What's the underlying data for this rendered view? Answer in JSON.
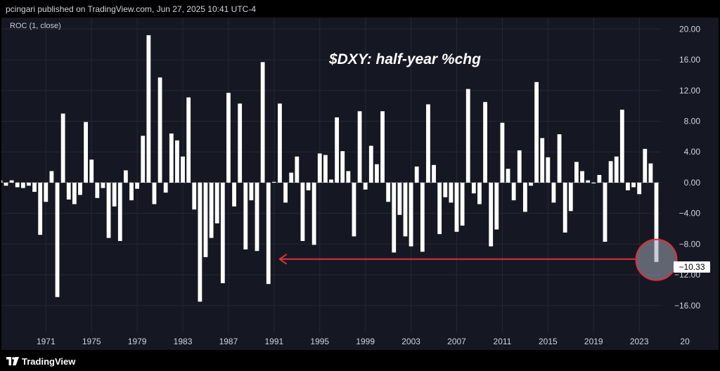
{
  "header": {
    "publisher": "pcingari published on TradingView.com, Jun 27, 2025 10:41 UTC-4"
  },
  "indicator_label": "ROC (1, close)",
  "footer": {
    "brand": "TradingView",
    "logo_icon": "tradingview-logo-icon"
  },
  "colors": {
    "background": "#151823",
    "bars": "#ffffff",
    "grid": "#242836",
    "annotation": "#e0303a"
  },
  "chart_data": {
    "type": "bar",
    "title": "$DXY: half-year %chg",
    "ylim": [
      -19.5,
      21.5
    ],
    "x_range": [
      1967.1,
      2024.9
    ],
    "y_ticks": [
      "20.00",
      "16.00",
      "12.00",
      "8.00",
      "4.00",
      "0.00",
      "−4.00",
      "−8.00",
      "−12.00",
      "−16.00"
    ],
    "x_ticks": [
      "1971",
      "1975",
      "1979",
      "1983",
      "1987",
      "1991",
      "1995",
      "1999",
      "2003",
      "2007",
      "2011",
      "2015",
      "2019",
      "2023",
      "20"
    ],
    "last_value_label": "−10.33",
    "grid": true,
    "series": [
      {
        "x": [
          1967.0,
          1967.5,
          1968.0,
          1968.5,
          1969.0,
          1969.5,
          1970.0,
          1970.5,
          1971.0,
          1971.5,
          1972.0,
          1972.5,
          1973.0,
          1973.5,
          1974.0,
          1974.5,
          1975.0,
          1975.5,
          1976.0,
          1976.5,
          1977.0,
          1977.5,
          1978.0,
          1978.5,
          1979.0,
          1979.5,
          1980.0,
          1980.5,
          1981.0,
          1981.5,
          1982.0,
          1982.5,
          1983.0,
          1983.5,
          1984.0,
          1984.5,
          1985.0,
          1985.5,
          1986.0,
          1986.5,
          1987.0,
          1987.5,
          1988.0,
          1988.5,
          1989.0,
          1989.5,
          1990.0,
          1990.5,
          1991.0,
          1991.5,
          1992.0,
          1992.5,
          1993.0,
          1993.5,
          1994.0,
          1994.5,
          1995.0,
          1995.5,
          1996.0,
          1996.5,
          1997.0,
          1997.5,
          1998.0,
          1998.5,
          1999.0,
          1999.5,
          2000.0,
          2000.5,
          2001.0,
          2001.5,
          2002.0,
          2002.5,
          2003.0,
          2003.5,
          2004.0,
          2004.5,
          2005.0,
          2005.5,
          2006.0,
          2006.5,
          2007.0,
          2007.5,
          2008.0,
          2008.5,
          2009.0,
          2009.5,
          2010.0,
          2010.5,
          2011.0,
          2011.5,
          2012.0,
          2012.5,
          2013.0,
          2013.5,
          2014.0,
          2014.5,
          2015.0,
          2015.5,
          2016.0,
          2016.5,
          2017.0,
          2017.5,
          2018.0,
          2018.5,
          2019.0,
          2019.5,
          2020.0,
          2020.5,
          2021.0,
          2021.5,
          2022.0,
          2022.5,
          2023.0,
          2023.5,
          2024.0,
          2024.5
        ],
        "values": [
          0.3,
          -0.4,
          0.3,
          -0.6,
          -0.7,
          -0.4,
          -1.2,
          -6.8,
          -2.5,
          1.5,
          -14.9,
          9.0,
          -2.2,
          -2.8,
          -1.6,
          7.9,
          3.0,
          -2.0,
          -0.7,
          -7.2,
          -3.1,
          -7.6,
          1.6,
          -2.3,
          -0.8,
          6.1,
          19.2,
          -2.8,
          13.7,
          -1.3,
          6.4,
          5.5,
          3.4,
          11.1,
          -3.5,
          -15.5,
          -9.7,
          -7.2,
          -5.3,
          -13.1,
          11.7,
          -3.1,
          10.3,
          -8.7,
          -2.3,
          -8.9,
          15.7,
          -13.2,
          0.1,
          10.3,
          -2.6,
          1.3,
          3.4,
          -7.6,
          -1.0,
          -8.1,
          3.8,
          3.6,
          0.4,
          8.5,
          4.1,
          1.5,
          -7.0,
          9.3,
          -0.9,
          4.8,
          2.4,
          9.3,
          -2.5,
          -9.1,
          -4.2,
          -7.0,
          -8.3,
          2.1,
          -9.0,
          10.2,
          2.3,
          -6.7,
          -1.9,
          -2.6,
          -6.4,
          -5.6,
          12.2,
          -1.4,
          -2.8,
          10.5,
          -8.3,
          -6.1,
          7.8,
          1.8,
          -2.3,
          4.2,
          -3.8,
          -0.4,
          13.1,
          5.8,
          3.3,
          -2.6,
          6.3,
          -6.5,
          -3.7,
          2.7,
          1.5,
          0.3,
          -0.1,
          1.0,
          -7.7,
          2.8,
          3.4,
          9.5,
          -1.0,
          -0.6,
          -1.5,
          4.4,
          2.5,
          -10.33
        ]
      }
    ]
  }
}
